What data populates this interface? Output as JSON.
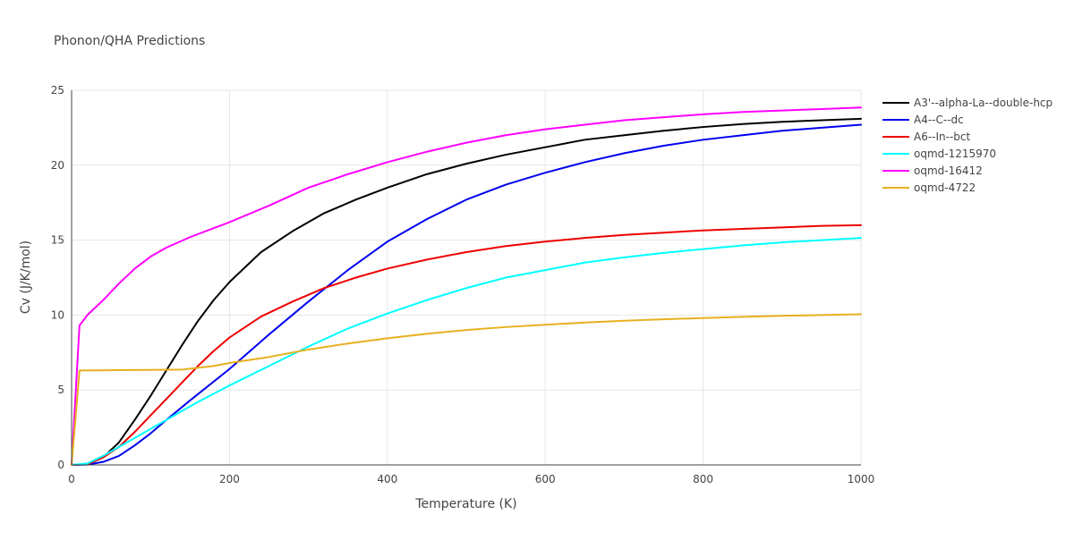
{
  "chart_data": {
    "type": "line",
    "title": "Phonon/QHA Predictions",
    "xlabel": "Temperature (K)",
    "ylabel": "Cv (J/K/mol)",
    "xlim": [
      0,
      1000
    ],
    "ylim": [
      0,
      25
    ],
    "x_ticks": [
      0,
      200,
      400,
      600,
      800,
      1000
    ],
    "y_ticks": [
      0,
      5,
      10,
      15,
      20,
      25
    ],
    "grid": true,
    "legend_position": "right",
    "series": [
      {
        "name": "A3'--alpha-La--double-hcp",
        "color": "#000000",
        "points": [
          [
            0,
            0
          ],
          [
            20,
            0.05
          ],
          [
            40,
            0.5
          ],
          [
            60,
            1.5
          ],
          [
            80,
            3.0
          ],
          [
            100,
            4.6
          ],
          [
            120,
            6.3
          ],
          [
            140,
            8.0
          ],
          [
            160,
            9.6
          ],
          [
            180,
            11.0
          ],
          [
            200,
            12.2
          ],
          [
            240,
            14.2
          ],
          [
            280,
            15.6
          ],
          [
            320,
            16.8
          ],
          [
            360,
            17.7
          ],
          [
            400,
            18.5
          ],
          [
            450,
            19.4
          ],
          [
            500,
            20.1
          ],
          [
            550,
            20.7
          ],
          [
            600,
            21.2
          ],
          [
            650,
            21.7
          ],
          [
            700,
            22.0
          ],
          [
            750,
            22.3
          ],
          [
            800,
            22.55
          ],
          [
            850,
            22.75
          ],
          [
            900,
            22.9
          ],
          [
            950,
            23.0
          ],
          [
            1000,
            23.1
          ]
        ]
      },
      {
        "name": "A4--C--dc",
        "color": "#0000ee",
        "points": [
          [
            0,
            0
          ],
          [
            20,
            0.02
          ],
          [
            40,
            0.2
          ],
          [
            60,
            0.6
          ],
          [
            80,
            1.3
          ],
          [
            100,
            2.1
          ],
          [
            120,
            3.0
          ],
          [
            150,
            4.3
          ],
          [
            200,
            6.4
          ],
          [
            250,
            8.7
          ],
          [
            300,
            10.9
          ],
          [
            350,
            13.0
          ],
          [
            400,
            14.9
          ],
          [
            450,
            16.4
          ],
          [
            500,
            17.7
          ],
          [
            550,
            18.7
          ],
          [
            600,
            19.5
          ],
          [
            650,
            20.2
          ],
          [
            700,
            20.8
          ],
          [
            750,
            21.3
          ],
          [
            800,
            21.7
          ],
          [
            850,
            22.0
          ],
          [
            900,
            22.3
          ],
          [
            950,
            22.5
          ],
          [
            1000,
            22.7
          ]
        ]
      },
      {
        "name": "A6--In--bct",
        "color": "#ee0000",
        "points": [
          [
            0,
            0
          ],
          [
            20,
            0.05
          ],
          [
            40,
            0.5
          ],
          [
            60,
            1.2
          ],
          [
            80,
            2.2
          ],
          [
            100,
            3.3
          ],
          [
            120,
            4.4
          ],
          [
            140,
            5.5
          ],
          [
            160,
            6.6
          ],
          [
            180,
            7.6
          ],
          [
            200,
            8.5
          ],
          [
            240,
            9.9
          ],
          [
            280,
            10.9
          ],
          [
            320,
            11.8
          ],
          [
            360,
            12.5
          ],
          [
            400,
            13.1
          ],
          [
            450,
            13.7
          ],
          [
            500,
            14.2
          ],
          [
            550,
            14.6
          ],
          [
            600,
            14.9
          ],
          [
            650,
            15.15
          ],
          [
            700,
            15.35
          ],
          [
            750,
            15.5
          ],
          [
            800,
            15.65
          ],
          [
            850,
            15.75
          ],
          [
            900,
            15.85
          ],
          [
            950,
            15.95
          ],
          [
            1000,
            16.0
          ]
        ]
      },
      {
        "name": "oqmd-1215970",
        "color": "#00ffff",
        "points": [
          [
            0,
            0
          ],
          [
            20,
            0.1
          ],
          [
            40,
            0.6
          ],
          [
            60,
            1.2
          ],
          [
            80,
            1.8
          ],
          [
            100,
            2.4
          ],
          [
            120,
            3.0
          ],
          [
            140,
            3.6
          ],
          [
            160,
            4.2
          ],
          [
            200,
            5.3
          ],
          [
            250,
            6.6
          ],
          [
            300,
            7.9
          ],
          [
            350,
            9.1
          ],
          [
            400,
            10.1
          ],
          [
            450,
            11.0
          ],
          [
            500,
            11.8
          ],
          [
            550,
            12.5
          ],
          [
            600,
            13.0
          ],
          [
            650,
            13.5
          ],
          [
            700,
            13.85
          ],
          [
            750,
            14.15
          ],
          [
            800,
            14.4
          ],
          [
            850,
            14.65
          ],
          [
            900,
            14.85
          ],
          [
            950,
            15.0
          ],
          [
            1000,
            15.15
          ]
        ]
      },
      {
        "name": "oqmd-16412",
        "color": "#ff00ff",
        "points": [
          [
            0,
            0
          ],
          [
            10,
            9.3
          ],
          [
            20,
            10.0
          ],
          [
            40,
            11.0
          ],
          [
            60,
            12.1
          ],
          [
            80,
            13.1
          ],
          [
            100,
            13.9
          ],
          [
            120,
            14.5
          ],
          [
            150,
            15.2
          ],
          [
            200,
            16.2
          ],
          [
            250,
            17.3
          ],
          [
            300,
            18.5
          ],
          [
            350,
            19.4
          ],
          [
            400,
            20.2
          ],
          [
            450,
            20.9
          ],
          [
            500,
            21.5
          ],
          [
            550,
            22.0
          ],
          [
            600,
            22.4
          ],
          [
            650,
            22.7
          ],
          [
            700,
            23.0
          ],
          [
            750,
            23.2
          ],
          [
            800,
            23.4
          ],
          [
            850,
            23.55
          ],
          [
            900,
            23.65
          ],
          [
            950,
            23.75
          ],
          [
            1000,
            23.85
          ]
        ]
      },
      {
        "name": "oqmd-4722",
        "color": "#e6b020",
        "points": [
          [
            0,
            0
          ],
          [
            10,
            6.3
          ],
          [
            50,
            6.32
          ],
          [
            100,
            6.34
          ],
          [
            140,
            6.36
          ],
          [
            180,
            6.6
          ],
          [
            200,
            6.8
          ],
          [
            250,
            7.2
          ],
          [
            300,
            7.7
          ],
          [
            350,
            8.1
          ],
          [
            400,
            8.45
          ],
          [
            450,
            8.75
          ],
          [
            500,
            9.0
          ],
          [
            550,
            9.2
          ],
          [
            600,
            9.35
          ],
          [
            650,
            9.5
          ],
          [
            700,
            9.62
          ],
          [
            750,
            9.72
          ],
          [
            800,
            9.8
          ],
          [
            850,
            9.88
          ],
          [
            900,
            9.95
          ],
          [
            950,
            10.0
          ],
          [
            1000,
            10.05
          ]
        ]
      }
    ]
  }
}
